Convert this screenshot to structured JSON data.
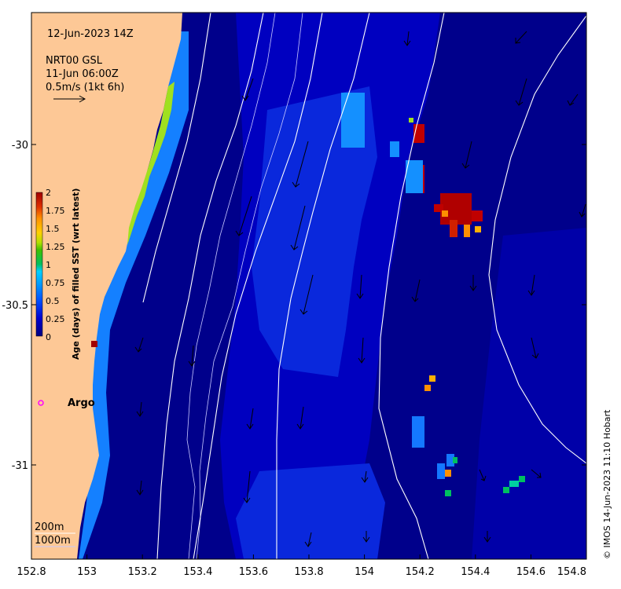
{
  "header": {
    "datetime": "12-Jun-2023 14Z",
    "product": "NRT00 GSL",
    "valid": "11-Jun 06:00Z",
    "scale_text": "0.5m/s (1kt 6h)"
  },
  "axes": {
    "x_ticks": [
      "152.8",
      "153",
      "153.2",
      "153.4",
      "153.6",
      "153.8",
      "154",
      "154.2",
      "154.4",
      "154.6",
      "154.8"
    ],
    "y_ticks": [
      "-30",
      "-30.5",
      "-31"
    ],
    "lon_range": [
      152.8,
      154.8
    ],
    "lat_range": [
      -29.6,
      -31.3
    ]
  },
  "colorbar": {
    "title": "Age (days) of filled SST (wrt latest)",
    "ticks": [
      "2",
      "1.75",
      "1.5",
      "1.25",
      "1",
      "0.75",
      "0.5",
      "0.25",
      "0"
    ],
    "colors": [
      "#000080",
      "#0000cd",
      "#0050ff",
      "#00a0ff",
      "#00d0ff",
      "#00c060",
      "#40c000",
      "#b0e000",
      "#ffd000",
      "#ff9000",
      "#e03000",
      "#a00000"
    ]
  },
  "argo": {
    "label": "Argo",
    "marker_color": "#ff00ff"
  },
  "depth_labels": {
    "shallow": "200m",
    "deep": "1000m"
  },
  "credit": "© IMOS 14-Jun-2023 11:10 Hobart",
  "colors": {
    "land": "#fdc896",
    "ocean_dark": "#00008b",
    "ocean_mid": "#0000c8",
    "ocean_light": "#0a32e6"
  }
}
